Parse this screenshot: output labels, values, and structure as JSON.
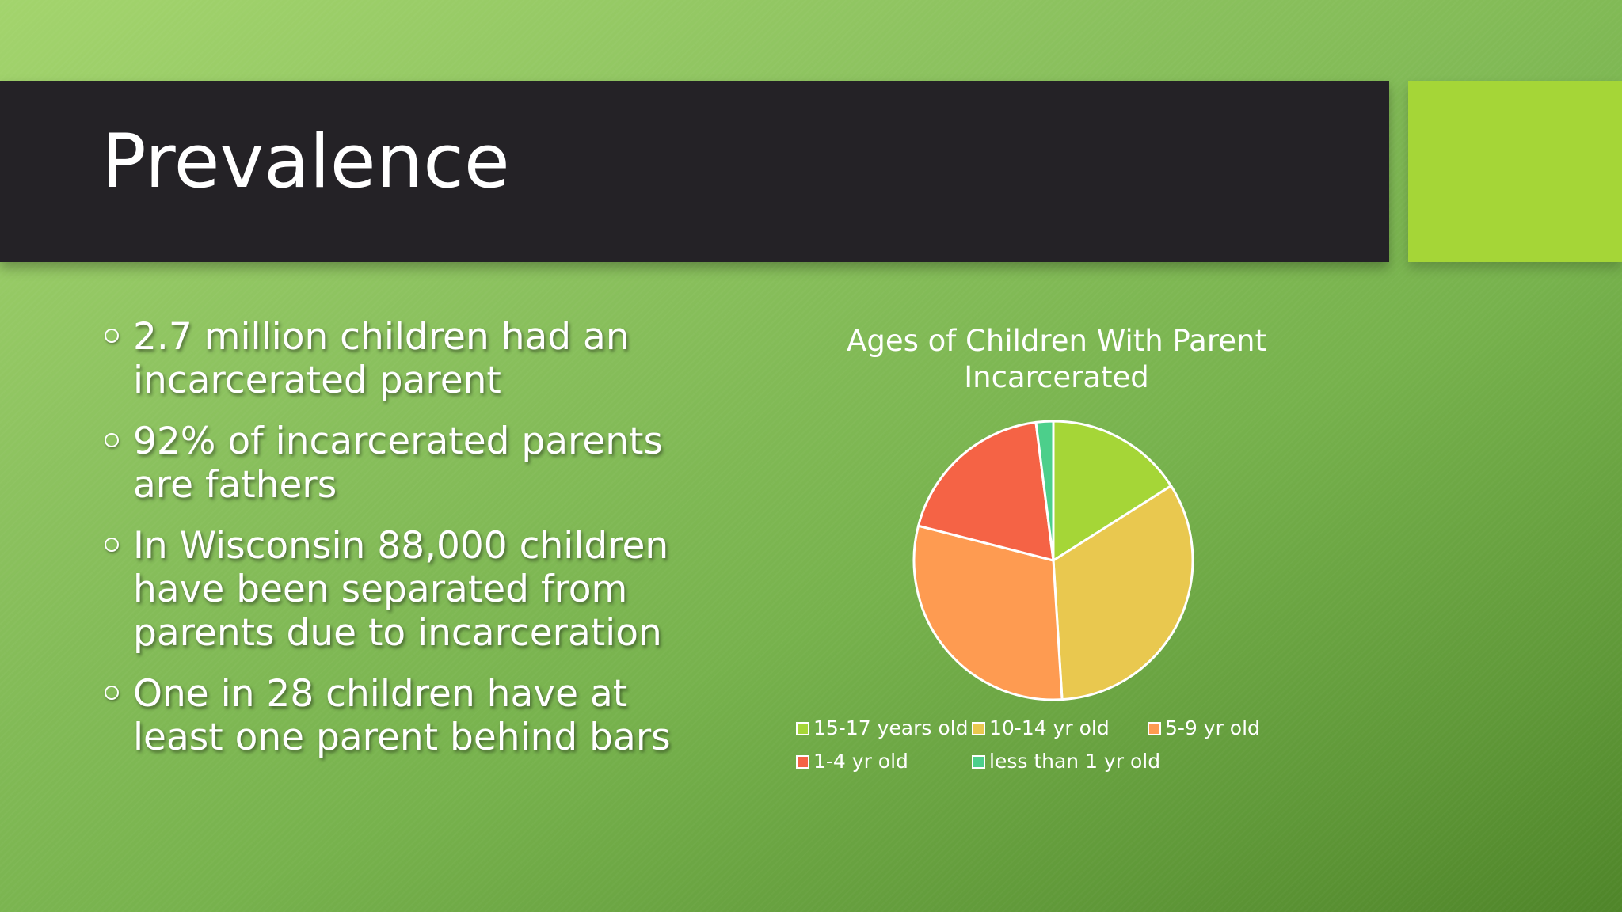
{
  "slide": {
    "title": "Prevalence",
    "bullets": [
      "2.7 million children had an incarcerated parent",
      "92% of incarcerated parents are fathers",
      "In Wisconsin 88,000 children have been separated from parents due to incarceration",
      " One in 28 children have at least one parent behind bars"
    ]
  },
  "colors": {
    "title_bar": "#242226",
    "accent": "#a5d637"
  },
  "chart_data": {
    "type": "pie",
    "title": "Ages of Children With Parent Incarcerated",
    "categories": [
      "15-17 years old",
      "10-14 yr old",
      "5-9 yr old",
      "1-4 yr old",
      "less than 1 yr old"
    ],
    "values": [
      16,
      33,
      30,
      19,
      2
    ],
    "colors": [
      "#a5d637",
      "#e9c84f",
      "#fe9b51",
      "#f56345",
      "#4ccf8b"
    ],
    "legend": "bottom"
  }
}
